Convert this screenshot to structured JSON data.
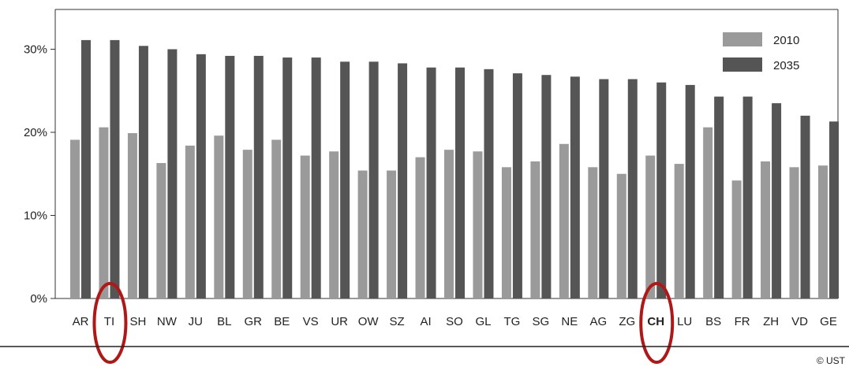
{
  "chart_data": {
    "type": "bar",
    "categories": [
      "AR",
      "TI",
      "SH",
      "NW",
      "JU",
      "BL",
      "GR",
      "BE",
      "VS",
      "UR",
      "OW",
      "SZ",
      "AI",
      "SO",
      "GL",
      "TG",
      "SG",
      "NE",
      "AG",
      "ZG",
      "CH",
      "LU",
      "BS",
      "FR",
      "ZH",
      "VD",
      "GE"
    ],
    "highlighted": [
      "TI",
      "CH"
    ],
    "bold_categories": [
      "CH"
    ],
    "series": [
      {
        "name": "2010",
        "color": "#9a9a9a",
        "values": [
          19.1,
          20.6,
          19.9,
          16.3,
          18.4,
          19.6,
          17.9,
          19.1,
          17.2,
          17.7,
          15.4,
          15.4,
          17.0,
          17.9,
          17.7,
          15.8,
          16.5,
          18.6,
          15.8,
          15.0,
          17.2,
          16.2,
          20.6,
          14.2,
          16.5,
          15.8,
          16.0
        ]
      },
      {
        "name": "2035",
        "color": "#555555",
        "values": [
          31.1,
          31.1,
          30.4,
          30.0,
          29.4,
          29.2,
          29.2,
          29.0,
          29.0,
          28.5,
          28.5,
          28.3,
          27.8,
          27.8,
          27.6,
          27.1,
          26.9,
          26.7,
          26.4,
          26.4,
          26.0,
          25.7,
          24.3,
          24.3,
          23.5,
          22.0,
          21.3
        ]
      }
    ],
    "ylim": [
      0,
      35
    ],
    "yticks": [
      "0%",
      "10%",
      "20%",
      "30%"
    ],
    "ytick_values": [
      0,
      10,
      20,
      30
    ],
    "legend_position": "top-right",
    "grid": false,
    "highlight_color": "#b01818",
    "credit": "© UST",
    "title": "",
    "xlabel": "",
    "ylabel": ""
  }
}
